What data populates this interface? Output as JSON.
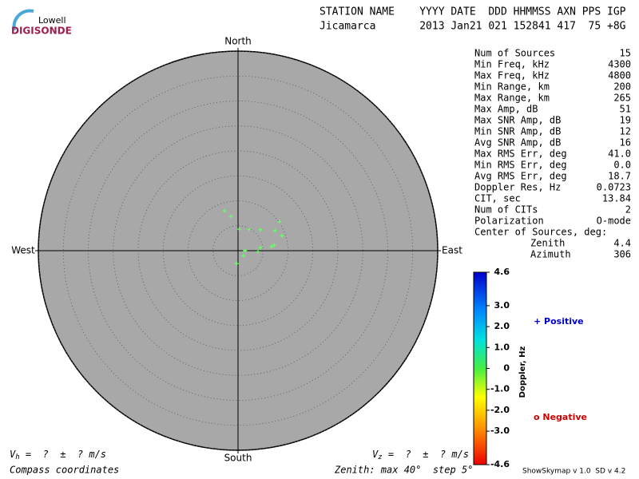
{
  "logo": {
    "top": "Lowell",
    "bottom": "DIGISONDE"
  },
  "header": {
    "line1": "STATION NAME    YYYY DATE  DDD HHMMSS AXN PPS IGP",
    "line2": "Jicamarca       2013 Jan21 021 152841 417  75 +8G"
  },
  "stats": [
    [
      "Num of Sources",
      "15"
    ],
    [
      "Min Freq, kHz",
      "4300"
    ],
    [
      "Max Freq, kHz",
      "4800"
    ],
    [
      "Min Range, km",
      "200"
    ],
    [
      "Max Range, km",
      "265"
    ],
    [
      "Max Amp, dB",
      "51"
    ],
    [
      "Max SNR Amp, dB",
      "19"
    ],
    [
      "Min SNR Amp, dB",
      "12"
    ],
    [
      "Avg SNR Amp, dB",
      "16"
    ],
    [
      "Max RMS Err, deg",
      "41.0"
    ],
    [
      "Min RMS Err, deg",
      "0.0"
    ],
    [
      "Avg RMS Err, deg",
      "18.7"
    ],
    [
      "Doppler Res, Hz",
      "0.0723"
    ],
    [
      "CIT, sec",
      "13.84"
    ],
    [
      "Num of CITs",
      "2"
    ],
    [
      "Polarization",
      "O-mode"
    ]
  ],
  "center": {
    "title": "Center of Sources, deg:",
    "zenith_label": "Zenith",
    "zenith": "4.4",
    "azimuth_label": "Azimuth",
    "azimuth": "306"
  },
  "chart_data": {
    "type": "skymap",
    "directions": {
      "north": "North",
      "south": "South",
      "east": "East",
      "west": "West"
    },
    "zlim": 40,
    "rings": [
      5,
      10,
      15,
      20,
      25,
      30,
      35,
      40
    ],
    "series": [
      {
        "name": "Positive",
        "color": "#66ff66",
        "x": [
          -2.7,
          -1.4,
          0.2,
          2.2,
          4.5,
          8.3,
          7.4,
          8.8,
          7.2,
          6.7,
          4.5,
          4.0,
          1.4,
          1.1,
          -0.3
        ],
        "y": [
          8.0,
          6.9,
          4.3,
          4.3,
          4.2,
          5.8,
          4.0,
          3.0,
          1.1,
          0.8,
          0.6,
          -0.2,
          0.0,
          -1.0,
          -2.6
        ]
      }
    ],
    "colorbar": {
      "title": "Doppler, Hz",
      "lim": [
        -4.6,
        4.6
      ],
      "ticks": [
        4.6,
        {
          "value": 3,
          "label": "3.0"
        },
        {
          "value": 2,
          "label": "2.0"
        },
        {
          "value": 1,
          "label": "1.0"
        },
        0,
        {
          "value": -1,
          "label": "-1.0"
        },
        {
          "value": -2,
          "label": "-2.0"
        },
        {
          "value": -3,
          "label": "-3.0"
        },
        -4.6
      ]
    },
    "legend": {
      "positive": "+ Positive",
      "negative": "o Negative"
    }
  },
  "footer": {
    "vh": {
      "symbol": "V",
      "sub": "h",
      "text": " =  ?  ±  ? m/s"
    },
    "vz": {
      "symbol": "V",
      "sub": "z",
      "text": " =  ?  ±  ? m/s"
    },
    "coords": "Compass coordinates",
    "zenith": "Zenith: max 40°  step 5°",
    "version": "ShowSkymap v 1.0  SD v 4.2"
  }
}
